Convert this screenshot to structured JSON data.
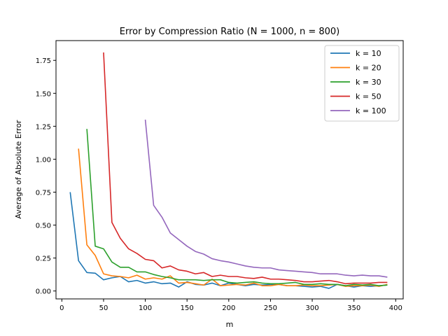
{
  "chart_data": {
    "type": "line",
    "title": "Error by Compression Ratio (N = 1000, n = 800)",
    "xlabel": "m",
    "ylabel": "Average of Absolute Error",
    "xlim": [
      -7,
      409
    ],
    "ylim": [
      -0.06,
      1.9
    ],
    "x_ticks": [
      0,
      50,
      100,
      150,
      200,
      250,
      300,
      350,
      400
    ],
    "y_ticks": [
      0.0,
      0.25,
      0.5,
      0.75,
      1.0,
      1.25,
      1.5,
      1.75
    ],
    "legend_position": "top-right",
    "grid": false,
    "series": [
      {
        "name": "k = 10",
        "color": "#1f77b4",
        "x": [
          10,
          20,
          30,
          40,
          50,
          60,
          70,
          80,
          90,
          100,
          110,
          120,
          130,
          140,
          150,
          160,
          170,
          180,
          190,
          200,
          210,
          220,
          230,
          240,
          250,
          260,
          270,
          280,
          290,
          300,
          310,
          320,
          330,
          340,
          350,
          360,
          370,
          380,
          390
        ],
        "y": [
          0.75,
          0.23,
          0.14,
          0.135,
          0.085,
          0.1,
          0.11,
          0.07,
          0.08,
          0.06,
          0.07,
          0.055,
          0.06,
          0.03,
          0.07,
          0.05,
          0.045,
          0.06,
          0.04,
          0.06,
          0.05,
          0.04,
          0.05,
          0.045,
          0.05,
          0.05,
          0.04,
          0.04,
          0.035,
          0.03,
          0.035,
          0.02,
          0.05,
          0.04,
          0.03,
          0.04,
          0.035,
          0.04,
          0.045
        ]
      },
      {
        "name": "k = 20",
        "color": "#ff7f0e",
        "x": [
          20,
          30,
          40,
          50,
          60,
          70,
          80,
          90,
          100,
          110,
          120,
          130,
          140,
          150,
          160,
          170,
          180,
          190,
          200,
          210,
          220,
          230,
          240,
          250,
          260,
          270,
          280,
          290,
          300,
          310,
          320,
          330,
          340,
          350,
          360,
          370,
          380,
          390
        ],
        "y": [
          1.08,
          0.35,
          0.27,
          0.13,
          0.115,
          0.11,
          0.1,
          0.12,
          0.09,
          0.1,
          0.09,
          0.115,
          0.06,
          0.065,
          0.055,
          0.045,
          0.09,
          0.04,
          0.045,
          0.05,
          0.045,
          0.06,
          0.04,
          0.04,
          0.05,
          0.04,
          0.04,
          0.045,
          0.04,
          0.04,
          0.045,
          0.05,
          0.035,
          0.04,
          0.04,
          0.045,
          0.035,
          0.05
        ]
      },
      {
        "name": "k = 30",
        "color": "#2ca02c",
        "x": [
          30,
          40,
          50,
          60,
          70,
          80,
          90,
          100,
          110,
          120,
          130,
          140,
          150,
          160,
          170,
          180,
          190,
          200,
          210,
          220,
          230,
          240,
          250,
          260,
          270,
          280,
          290,
          300,
          310,
          320,
          330,
          340,
          350,
          360,
          370,
          380,
          390
        ],
        "y": [
          1.23,
          0.34,
          0.32,
          0.22,
          0.18,
          0.18,
          0.145,
          0.145,
          0.125,
          0.11,
          0.1,
          0.085,
          0.085,
          0.085,
          0.08,
          0.085,
          0.085,
          0.065,
          0.06,
          0.065,
          0.07,
          0.06,
          0.055,
          0.055,
          0.06,
          0.065,
          0.05,
          0.05,
          0.055,
          0.05,
          0.05,
          0.04,
          0.05,
          0.045,
          0.05,
          0.04,
          0.045
        ]
      },
      {
        "name": "k = 50",
        "color": "#d62728",
        "x": [
          50,
          60,
          70,
          80,
          90,
          100,
          110,
          120,
          130,
          140,
          150,
          160,
          170,
          180,
          190,
          200,
          210,
          220,
          230,
          240,
          250,
          260,
          270,
          280,
          290,
          300,
          310,
          320,
          330,
          340,
          350,
          360,
          370,
          380,
          390
        ],
        "y": [
          1.81,
          0.52,
          0.4,
          0.32,
          0.285,
          0.24,
          0.23,
          0.175,
          0.19,
          0.16,
          0.15,
          0.13,
          0.14,
          0.11,
          0.12,
          0.11,
          0.11,
          0.1,
          0.095,
          0.105,
          0.09,
          0.09,
          0.085,
          0.08,
          0.07,
          0.07,
          0.075,
          0.08,
          0.07,
          0.055,
          0.06,
          0.06,
          0.06,
          0.065,
          0.065
        ]
      },
      {
        "name": "k = 100",
        "color": "#9467bd",
        "x": [
          100,
          110,
          120,
          130,
          140,
          150,
          160,
          170,
          180,
          190,
          200,
          210,
          220,
          230,
          240,
          250,
          260,
          270,
          280,
          290,
          300,
          310,
          320,
          330,
          340,
          350,
          360,
          370,
          380,
          390
        ],
        "y": [
          1.3,
          0.65,
          0.56,
          0.44,
          0.39,
          0.34,
          0.3,
          0.28,
          0.245,
          0.23,
          0.22,
          0.205,
          0.19,
          0.18,
          0.175,
          0.175,
          0.16,
          0.155,
          0.15,
          0.145,
          0.14,
          0.13,
          0.13,
          0.13,
          0.12,
          0.115,
          0.12,
          0.115,
          0.115,
          0.105
        ]
      }
    ]
  }
}
